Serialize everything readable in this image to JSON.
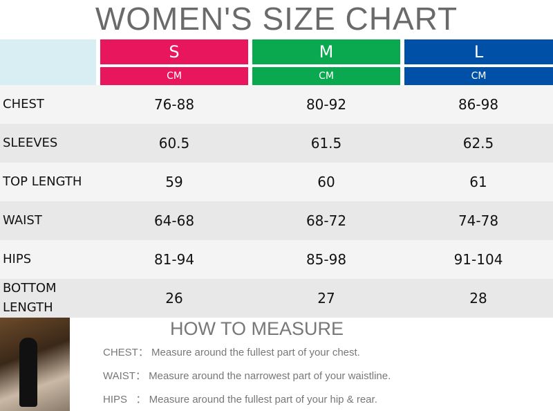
{
  "title": "WOMEN'S SIZE CHART",
  "sizes": [
    {
      "label": "S",
      "unit": "CM",
      "color": "#e8175d"
    },
    {
      "label": "M",
      "unit": "CM",
      "color": "#0aa84f"
    },
    {
      "label": "L",
      "unit": "CM",
      "color": "#0050a8"
    }
  ],
  "rows": [
    {
      "label": "CHEST",
      "values": [
        "76-88",
        "80-92",
        "86-98"
      ]
    },
    {
      "label": "SLEEVES",
      "values": [
        "60.5",
        "61.5",
        "62.5"
      ]
    },
    {
      "label": "TOP LENGTH",
      "values": [
        "59",
        "60",
        "61"
      ]
    },
    {
      "label": "WAIST",
      "values": [
        "64-68",
        "68-72",
        "74-78"
      ]
    },
    {
      "label": "HIPS",
      "values": [
        "81-94",
        "85-98",
        "91-104"
      ]
    },
    {
      "label": "BOTTOM LENGTH",
      "values": [
        "26",
        "27",
        "28"
      ]
    }
  ],
  "how_to_measure": {
    "title": "HOW TO MEASURE",
    "items": [
      "CHEST： Measure around the fullest part of your chest.",
      "WAIST： Measure around the narrowest part of your waistline.",
      "HIPS   ： Measure around the fullest part of your hip & rear."
    ]
  }
}
